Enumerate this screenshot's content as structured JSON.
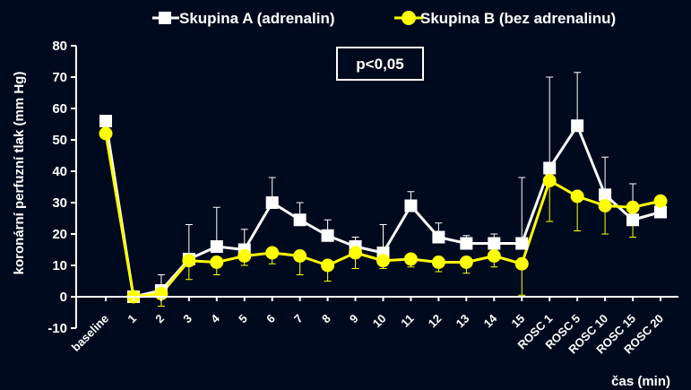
{
  "chart_data": {
    "type": "line",
    "ylabel": "koronární perfuzní tlak (mm Hg)",
    "xlabel": "čas (min)",
    "ylim": [
      -10,
      80
    ],
    "yticks": [
      -10,
      0,
      10,
      20,
      30,
      40,
      50,
      60,
      70,
      80
    ],
    "categories": [
      "baseline",
      "1",
      "2",
      "3",
      "4",
      "5",
      "6",
      "7",
      "8",
      "9",
      "10",
      "11",
      "12",
      "13",
      "14",
      "15",
      "ROSC 1",
      "ROSC 5",
      "ROSC 10",
      "ROSC 15",
      "ROSC 20"
    ],
    "legend_position": "top",
    "annotation": "p<0,05",
    "series": [
      {
        "name": "Skupina A (adrenalin)",
        "color": "#ffffff",
        "marker": "square",
        "values": [
          56,
          0,
          2,
          12,
          16,
          15,
          30,
          24.5,
          19.5,
          16,
          14,
          29,
          19,
          17,
          17,
          17,
          41,
          54.5,
          32.5,
          24.5,
          27
        ],
        "error_plus": [
          0,
          0,
          5,
          11,
          12.5,
          6.5,
          8,
          5.5,
          5,
          3,
          9,
          4.5,
          4.5,
          2.5,
          3,
          21,
          29,
          17,
          12,
          11.5,
          0
        ]
      },
      {
        "name": "Skupina B (bez adrenalinu)",
        "color": "#ffff00",
        "marker": "circle",
        "values": [
          52,
          0,
          1,
          11.5,
          11,
          13,
          14,
          13,
          10,
          14,
          11.5,
          12,
          11,
          11,
          13,
          10.5,
          37,
          32,
          29,
          28.5,
          30.5
        ],
        "error_minus": [
          0,
          0,
          4,
          6,
          4,
          3,
          3.5,
          6,
          5,
          5,
          2.5,
          2.5,
          3,
          3.5,
          3.5,
          10,
          13,
          11,
          9,
          9.5,
          0
        ]
      }
    ]
  }
}
